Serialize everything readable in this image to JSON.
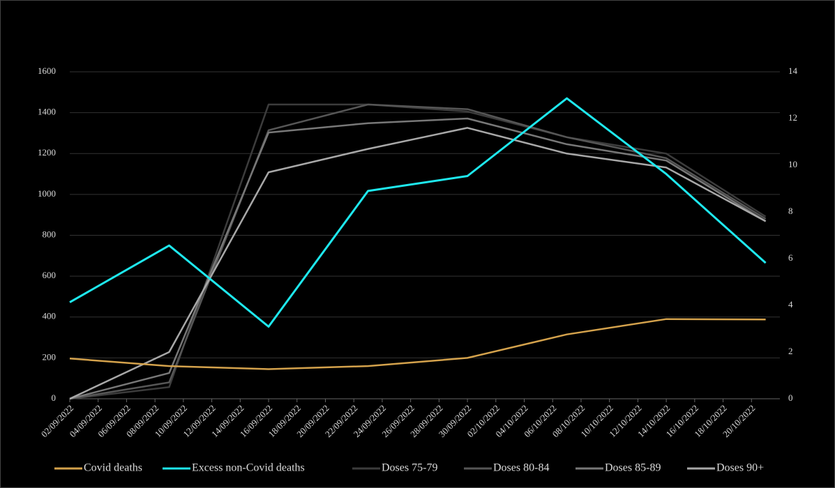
{
  "chart_data": {
    "type": "line",
    "x": [
      "02/09/2022",
      "09/09/2022",
      "16/09/2022",
      "23/09/2022",
      "30/09/2022",
      "07/10/2022",
      "14/10/2022",
      "21/10/2022"
    ],
    "xlim": [
      "02/09/2022",
      "22/10/2022"
    ],
    "xticks": [
      "02/09/2022",
      "04/09/2022",
      "06/09/2022",
      "08/09/2022",
      "10/09/2022",
      "12/09/2022",
      "14/09/2022",
      "16/09/2022",
      "18/09/2022",
      "20/09/2022",
      "22/09/2022",
      "24/09/2022",
      "26/09/2022",
      "28/09/2022",
      "30/09/2022",
      "02/10/2022",
      "04/10/2022",
      "06/10/2022",
      "08/10/2022",
      "10/10/2022",
      "12/10/2022",
      "14/10/2022",
      "16/10/2022",
      "18/10/2022",
      "20/10/2022"
    ],
    "ylim": [
      0,
      1600
    ],
    "yticks": [
      0,
      200,
      400,
      600,
      800,
      1000,
      1200,
      1400,
      1600
    ],
    "y2lim": [
      0,
      14
    ],
    "y2ticks": [
      0,
      2,
      4,
      6,
      8,
      10,
      12,
      14
    ],
    "grid": true,
    "legend": "bottom",
    "series": [
      {
        "name": "Covid deaths",
        "color": "#d4a24c",
        "values": [
          197,
          160,
          145,
          160,
          200,
          315,
          390,
          388
        ]
      },
      {
        "name": "Excess non-Covid deaths",
        "color": "#1ee8ee",
        "values": [
          472,
          750,
          353,
          1017,
          1090,
          1470,
          1100,
          665
        ]
      },
      {
        "name": "Doses 75-79",
        "color": "#3c3c3c",
        "axis": "y2",
        "values": [
          0,
          0.5,
          12.6,
          12.6,
          12.3,
          11.2,
          10.5,
          7.8
        ]
      },
      {
        "name": "Doses 80-84",
        "color": "#565656",
        "axis": "y2",
        "values": [
          0,
          0.7,
          11.5,
          12.6,
          12.4,
          11.2,
          10.3,
          7.7
        ]
      },
      {
        "name": "Doses 85-89",
        "color": "#787878",
        "axis": "y2",
        "values": [
          0,
          1.1,
          11.4,
          11.8,
          12.0,
          10.9,
          10.2,
          7.6
        ]
      },
      {
        "name": "Doses 90+",
        "color": "#a8a8a8",
        "axis": "y2",
        "values": [
          0,
          2.0,
          9.7,
          10.7,
          11.6,
          10.5,
          9.9,
          7.6
        ]
      }
    ]
  }
}
